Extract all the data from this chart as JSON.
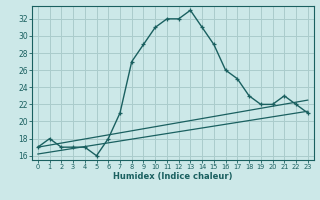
{
  "xlabel": "Humidex (Indice chaleur)",
  "background_color": "#cce8e8",
  "grid_color": "#aacccc",
  "line_color": "#1a6060",
  "x_values": [
    0,
    1,
    2,
    3,
    4,
    5,
    6,
    7,
    8,
    9,
    10,
    11,
    12,
    13,
    14,
    15,
    16,
    17,
    18,
    19,
    20,
    21,
    22,
    23
  ],
  "y_humidex": [
    17,
    18,
    17,
    17,
    17,
    16,
    18,
    21,
    27,
    29,
    31,
    32,
    32,
    33,
    31,
    29,
    26,
    25,
    23,
    22,
    22,
    23,
    22,
    21
  ],
  "ref_line1": [
    [
      0,
      17.0
    ],
    [
      23,
      22.5
    ]
  ],
  "ref_line2": [
    [
      0,
      16.2
    ],
    [
      23,
      21.2
    ]
  ],
  "ylim": [
    15.5,
    33.5
  ],
  "yticks": [
    16,
    18,
    20,
    22,
    24,
    26,
    28,
    30,
    32
  ],
  "xlim": [
    -0.5,
    23.5
  ],
  "xtick_labels": [
    "0",
    "1",
    "2",
    "3",
    "4",
    "5",
    "6",
    "7",
    "8",
    "9",
    "10",
    "11",
    "12",
    "13",
    "14",
    "15",
    "16",
    "17",
    "18",
    "19",
    "20",
    "21",
    "22",
    "23"
  ]
}
